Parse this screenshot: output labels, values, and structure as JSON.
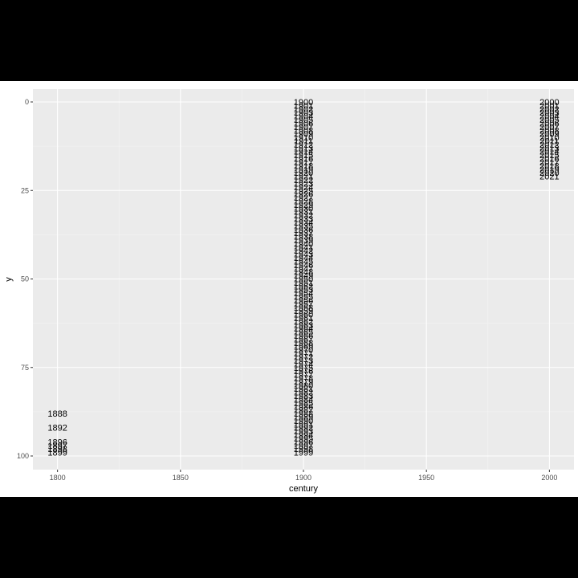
{
  "chart_data": {
    "type": "scatter",
    "title": "",
    "xlabel": "century",
    "ylabel": "y",
    "xlim": [
      1790,
      2010
    ],
    "ylim": [
      0,
      100
    ],
    "y_reversed": true,
    "grid": true,
    "xticks": [
      1800,
      1850,
      1900,
      1950,
      2000
    ],
    "xtick_labels": [
      "1800",
      "1850",
      "1900",
      "1950",
      "2000"
    ],
    "yticks": [
      0,
      25,
      50,
      75,
      100
    ],
    "ytick_labels": [
      "0",
      "25",
      "50",
      "75",
      "100"
    ],
    "series": [
      {
        "name": "1800",
        "x": 1800,
        "years": [
          1888,
          1892,
          1896,
          1897,
          1898,
          1899
        ]
      },
      {
        "name": "1900",
        "x": 1900,
        "years_range": [
          1900,
          1999
        ]
      },
      {
        "name": "2000",
        "x": 2000,
        "years_range": [
          2000,
          2021
        ]
      }
    ]
  },
  "colors": {
    "panel": "#ebebeb",
    "grid_major": "#ffffff",
    "grid_minor": "#f4f4f4",
    "text": "#000000",
    "tick": "#4d4d4d",
    "letterbox": "#000000"
  }
}
